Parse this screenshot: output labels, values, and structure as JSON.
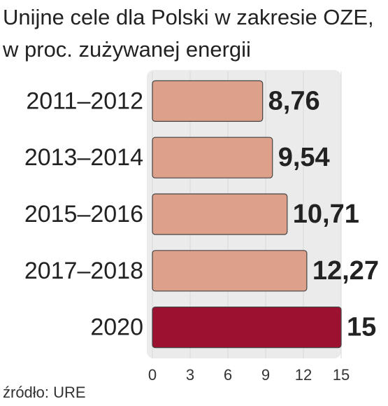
{
  "chart_data": {
    "type": "hbar",
    "title": "Unijne cele dla Polski w zakresie OZE, w proc. zużywanej energii",
    "categories": [
      "2011–2012",
      "2013–2014",
      "2015–2016",
      "2017–2018",
      "2020"
    ],
    "values": [
      8.76,
      9.54,
      10.71,
      12.27,
      15
    ],
    "value_labels": [
      "8,76",
      "9,54",
      "10,71",
      "12,27",
      "15"
    ],
    "colors": [
      "#dca08b",
      "#dca08b",
      "#dca08b",
      "#dca08b",
      "#9c1030"
    ],
    "xlim": [
      0,
      15
    ],
    "xticks": [
      0,
      3,
      6,
      9,
      12,
      15
    ],
    "grid": true,
    "source": "źródło: URE"
  }
}
